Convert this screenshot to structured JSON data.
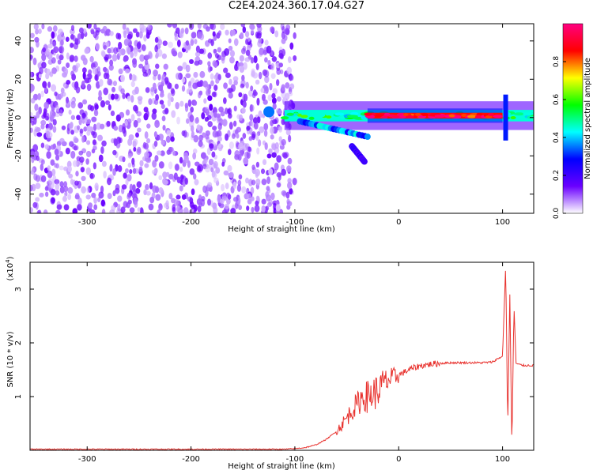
{
  "title": "C2E4.2024.360.17.04.G27",
  "chart_data": [
    {
      "type": "heatmap",
      "xlabel": "Height of straight line (km)",
      "ylabel": "Frequency (Hz)",
      "xlim": [
        -355,
        130
      ],
      "ylim": [
        -50,
        49
      ],
      "xticks": [
        -300,
        -200,
        -100,
        0,
        100
      ],
      "yticks": [
        -40,
        -20,
        0,
        20,
        40
      ],
      "colorbar": {
        "label": "Normalized spectral amplitude",
        "range": [
          0,
          1
        ],
        "ticks": [
          0.0,
          0.2,
          0.4,
          0.6,
          0.8
        ],
        "colors": [
          "#ffffff",
          "#6a00ff",
          "#0000ff",
          "#00ffff",
          "#00ff00",
          "#ffff00",
          "#ff0000",
          "#ff0080"
        ]
      },
      "regions": [
        {
          "x_range": [
            -355,
            -100
          ],
          "f_range": [
            -50,
            49
          ],
          "amplitude": 0.1,
          "description": "noise"
        },
        {
          "x_range": [
            -110,
            130
          ],
          "f_center": 1,
          "f_width": 3,
          "amplitude": 0.45
        },
        {
          "x_range": [
            -30,
            100
          ],
          "f_center": 1,
          "amplitude": 0.85
        }
      ],
      "features": [
        {
          "x": -125,
          "f": 3,
          "amplitude": 0.35
        },
        {
          "x_range": [
            -95,
            -30
          ],
          "f_start": -2,
          "f_end": -10,
          "amplitude": 0.35
        },
        {
          "x_range": [
            -45,
            -33
          ],
          "f_start": -15,
          "f_end": -23,
          "amplitude": 0.2
        },
        {
          "x": 103,
          "f_range": [
            -12,
            12
          ],
          "amplitude": 0.3
        }
      ]
    },
    {
      "type": "line",
      "xlabel": "Height of straight line (km)",
      "ylabel": "SNR (10 * v/v)",
      "y_multiplier": "(x10",
      "y_multiplier_exp": "4",
      "y_multiplier_close": ")",
      "xlim": [
        -355,
        130
      ],
      "ylim": [
        0,
        3.5
      ],
      "xticks": [
        -300,
        -200,
        -100,
        0,
        100
      ],
      "yticks": [
        1,
        2,
        3
      ],
      "color": "#e8322e",
      "series": [
        {
          "x": [
            -355,
            -300,
            -250,
            -200,
            -150,
            -110,
            -100,
            -90,
            -80,
            -70,
            -60,
            -50,
            -45,
            -40,
            -35,
            -30,
            -25,
            -20,
            -15,
            -10,
            -5,
            0,
            10,
            20,
            30,
            40,
            50,
            60,
            70,
            80,
            90,
            95,
            100,
            103,
            105,
            107,
            109,
            111,
            113,
            115,
            120,
            130
          ],
          "y": [
            0.02,
            0.02,
            0.02,
            0.02,
            0.02,
            0.02,
            0.03,
            0.05,
            0.1,
            0.2,
            0.35,
            0.6,
            0.75,
            0.85,
            1.0,
            1.0,
            1.05,
            1.1,
            1.25,
            1.3,
            1.35,
            1.4,
            1.5,
            1.57,
            1.6,
            1.62,
            1.63,
            1.63,
            1.63,
            1.63,
            1.64,
            1.7,
            1.75,
            3.45,
            0.4,
            2.9,
            0.0,
            2.7,
            1.62,
            1.6,
            1.58,
            1.58
          ]
        }
      ]
    }
  ]
}
